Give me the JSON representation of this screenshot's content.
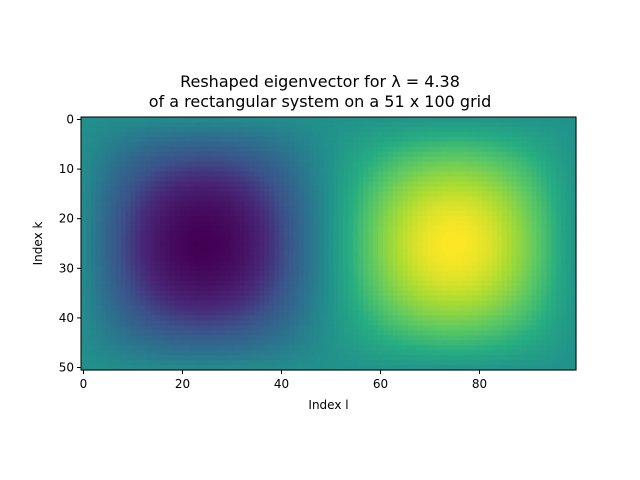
{
  "chart_data": {
    "type": "heatmap",
    "title_line1": "Reshaped eigenvector for λ = 4.38",
    "title_line2": "of a rectangular system on a 51 x 100 grid",
    "xlabel": "Index l",
    "ylabel": "Index k",
    "rows": 51,
    "cols": 100,
    "xlim": [
      -0.5,
      99.5
    ],
    "ylim": [
      50.5,
      -0.5
    ],
    "xticks": [
      0,
      20,
      40,
      60,
      80
    ],
    "yticks": [
      0,
      10,
      20,
      30,
      40,
      50
    ],
    "x_tick_labels": [
      "0",
      "20",
      "40",
      "60",
      "80"
    ],
    "y_tick_labels": [
      "0",
      "10",
      "20",
      "30",
      "40",
      "50"
    ],
    "colormap": "viridis",
    "pattern": "sin(pi*(k+1)/52) * sin(2*pi*(l+1)/101) with minimum near l=25, k=25 and maximum near l=74, k=25",
    "colors": {
      "viridis_low": "#440154",
      "viridis_mid": "#21918c",
      "viridis_high": "#fde725"
    }
  }
}
